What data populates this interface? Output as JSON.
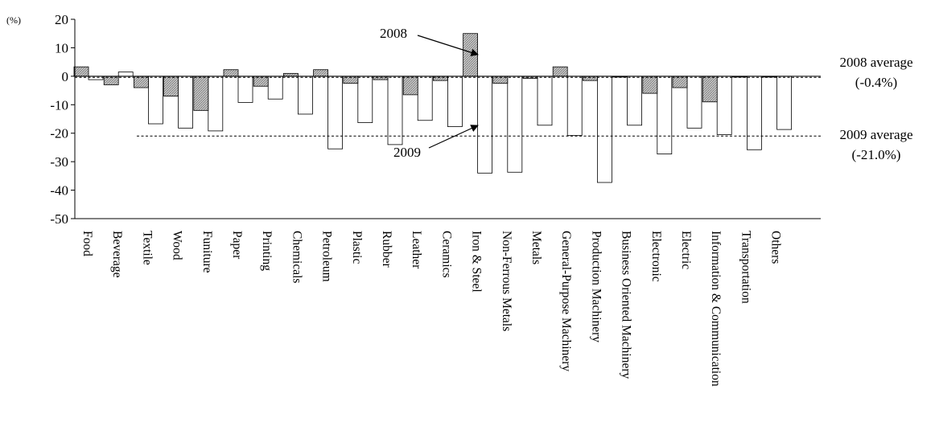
{
  "chart_data": {
    "type": "bar",
    "ylabel": "(%)",
    "ylim": [
      -50,
      20
    ],
    "yticks": [
      20,
      10,
      0,
      -10,
      -20,
      -30,
      -40,
      -50
    ],
    "grid": false,
    "categories": [
      "Food",
      "Beverage",
      "Textile",
      "Wood",
      "Funiture",
      "Paper",
      "Printing",
      "Chemicals",
      "Petroleum",
      "Plastic",
      "Rubber",
      "Leather",
      "Ceramics",
      "Iron & Steel",
      "Non-Ferrous Metals",
      "Metals",
      "General-Purpose Machinery",
      "Production Machinery",
      "Business Oriented Machinery",
      "Electronic",
      "Electric",
      "Information & Communication",
      "Transportation",
      "Others"
    ],
    "series": [
      {
        "name": "2008",
        "color": "#c0c0c0",
        "pattern": "hatched",
        "values": [
          3.3,
          -3.0,
          -4.0,
          -7.0,
          -12.0,
          2.3,
          -3.5,
          1.0,
          2.3,
          -2.5,
          -1.2,
          -6.5,
          -1.5,
          15.0,
          -2.5,
          -0.8,
          3.3,
          -1.5,
          -0.3,
          -6.0,
          -4.0,
          -9.0,
          -0.3,
          -0.3
        ]
      },
      {
        "name": "2009",
        "color": "#ffffff",
        "pattern": "solid",
        "values": [
          -1.2,
          1.5,
          -16.7,
          -18.2,
          -19.2,
          -9.2,
          -8.0,
          -13.3,
          -25.5,
          -16.3,
          -24.0,
          -15.5,
          -17.7,
          -34.0,
          -33.7,
          -17.2,
          -20.8,
          -37.3,
          -17.2,
          -27.3,
          -18.2,
          -20.5,
          -25.8,
          -18.7
        ]
      }
    ],
    "reference_lines": [
      {
        "series": "2008",
        "value": -0.4,
        "label_line1": "2008 average",
        "label_line2": "(-0.4%)"
      },
      {
        "series": "2009",
        "value": -21.0,
        "label_line1": "2009 average",
        "label_line2": "(-21.0%)"
      }
    ],
    "annotations": [
      {
        "text": "2008",
        "points_to_category": "Iron & Steel",
        "series": "2008"
      },
      {
        "text": "2009",
        "points_to_category": "Iron & Steel",
        "series": "2009"
      }
    ]
  }
}
